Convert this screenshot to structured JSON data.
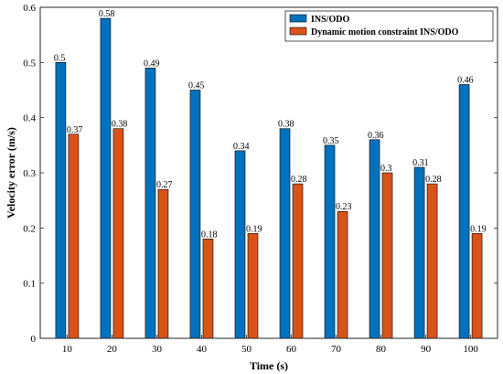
{
  "chart_data": {
    "type": "bar",
    "categories": [
      "10",
      "20",
      "30",
      "40",
      "50",
      "60",
      "70",
      "80",
      "90",
      "100"
    ],
    "series": [
      {
        "name": "INS/ODO",
        "color": "#0072BD",
        "values": [
          0.5,
          0.58,
          0.49,
          0.45,
          0.34,
          0.38,
          0.35,
          0.36,
          0.31,
          0.46
        ],
        "labels": [
          "0.5",
          "0.58",
          "0.49",
          "0.45",
          "0.34",
          "0.38",
          "0.35",
          "0.36",
          "0.31",
          "0.46"
        ]
      },
      {
        "name": "Dynamic motion constraint INS/ODO",
        "color": "#D95319",
        "values": [
          0.37,
          0.38,
          0.27,
          0.18,
          0.19,
          0.28,
          0.23,
          0.3,
          0.28,
          0.19
        ],
        "labels": [
          "0.37",
          "0.38",
          "0.27",
          "0.18",
          "0.19",
          "0.28",
          "0.23",
          "0.3",
          "0.28",
          "0.19"
        ]
      }
    ],
    "xlabel": "Time (s)",
    "ylabel": "Velocity error (m/s)",
    "ylim": [
      0,
      0.6
    ],
    "yticks": [
      "0",
      "0.1",
      "0.2",
      "0.3",
      "0.4",
      "0.5",
      "0.6"
    ],
    "ytick_values": [
      0,
      0.1,
      0.2,
      0.3,
      0.4,
      0.5,
      0.6
    ],
    "grid": false,
    "legend_position": "top-right"
  }
}
